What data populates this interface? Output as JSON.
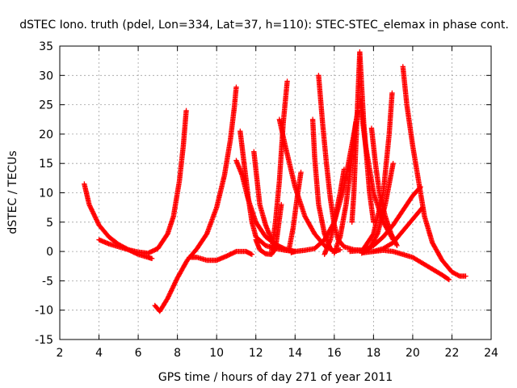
{
  "chart_data": {
    "type": "scatter",
    "title": "dSTEC Iono. truth (pdel, Lon=334, Lat=37, h=110): STEC-STEC_elemax in phase cont.",
    "xlabel": "GPS time / hours of day 271 of year 2011",
    "ylabel": "dSTEC  / TECUs",
    "xlim": [
      2,
      24
    ],
    "ylim": [
      -15,
      35
    ],
    "xticks": [
      2,
      4,
      6,
      8,
      10,
      12,
      14,
      16,
      18,
      20,
      22,
      24
    ],
    "yticks": [
      -15,
      -10,
      -5,
      0,
      5,
      10,
      15,
      20,
      25,
      30,
      35
    ],
    "grid": true,
    "marker": "plus",
    "color": "#ff0000",
    "series": [
      {
        "x": [
          3.25,
          3.5,
          4.0,
          4.5,
          5.0,
          5.5,
          6.0,
          6.5,
          6.7
        ],
        "y": [
          11.5,
          8.0,
          4.5,
          2.5,
          1.2,
          0.3,
          -0.5,
          -1.0,
          -1.2
        ]
      },
      {
        "x": [
          4.0,
          4.5,
          5.0,
          5.5,
          6.0,
          6.5,
          7.0,
          7.5,
          7.8,
          8.1,
          8.3,
          8.45
        ],
        "y": [
          2.0,
          1.3,
          0.8,
          0.3,
          -0.1,
          -0.3,
          0.5,
          3.0,
          6.0,
          12.0,
          18.0,
          24.0
        ]
      },
      {
        "x": [
          6.85,
          7.1,
          7.5,
          8.0,
          8.5,
          9.0,
          9.5,
          10.0,
          10.4,
          10.7,
          10.9,
          11.0
        ],
        "y": [
          -9.2,
          -10.2,
          -8.0,
          -4.5,
          -1.5,
          0.5,
          3.0,
          7.5,
          13.0,
          19.0,
          24.5,
          28.0
        ]
      },
      {
        "x": [
          8.6,
          9.0,
          9.5,
          10.0,
          10.5,
          11.0,
          11.5,
          11.8
        ],
        "y": [
          -1.0,
          -1.0,
          -1.5,
          -1.5,
          -0.8,
          0.0,
          0.0,
          -0.5
        ]
      },
      {
        "x": [
          11.0,
          11.3,
          11.6,
          12.0,
          12.5,
          13.0,
          13.5,
          14.0
        ],
        "y": [
          15.5,
          13.0,
          9.0,
          5.0,
          2.5,
          1.2,
          0.4,
          0.0
        ]
      },
      {
        "x": [
          11.2,
          11.4,
          11.6,
          11.8,
          12.0,
          12.5,
          13.0,
          13.5,
          14.0
        ],
        "y": [
          20.5,
          15.0,
          9.5,
          5.0,
          2.5,
          1.0,
          0.5,
          0.2,
          0.0
        ]
      },
      {
        "x": [
          11.9,
          12.0,
          12.2,
          12.5,
          12.8,
          13.0
        ],
        "y": [
          17.0,
          14.0,
          8.0,
          4.5,
          2.0,
          1.0
        ]
      },
      {
        "x": [
          12.0,
          12.2,
          12.5,
          12.8,
          13.0,
          13.1,
          13.3
        ],
        "y": [
          2.0,
          0.3,
          -0.4,
          -0.5,
          0.5,
          3.0,
          8.0
        ]
      },
      {
        "x": [
          12.8,
          13.0,
          13.2,
          13.4,
          13.6
        ],
        "y": [
          0.0,
          5.0,
          12.0,
          22.0,
          29.0
        ]
      },
      {
        "x": [
          13.2,
          13.5,
          14.0,
          14.5,
          15.0,
          15.5,
          16.0
        ],
        "y": [
          22.5,
          18.0,
          11.0,
          6.0,
          3.0,
          1.0,
          0.0
        ]
      },
      {
        "x": [
          13.7,
          13.9,
          14.1,
          14.3
        ],
        "y": [
          0.5,
          4.0,
          9.0,
          13.5
        ]
      },
      {
        "x": [
          13.8,
          14.0,
          14.5,
          15.0,
          15.5,
          16.0,
          16.5,
          17.0,
          17.2
        ],
        "y": [
          -0.2,
          0.0,
          0.2,
          0.5,
          2.0,
          5.0,
          11.0,
          20.0,
          24.0
        ]
      },
      {
        "x": [
          14.9,
          15.0,
          15.2,
          15.5,
          15.8,
          16.0,
          16.3
        ],
        "y": [
          22.5,
          16.0,
          8.0,
          3.0,
          0.5,
          0.0,
          0.3
        ]
      },
      {
        "x": [
          15.2,
          15.4,
          15.6,
          15.8,
          16.0,
          16.2,
          16.5,
          17.0,
          17.5
        ],
        "y": [
          30.0,
          22.0,
          15.0,
          9.0,
          4.5,
          2.0,
          0.8,
          0.3,
          0.2
        ]
      },
      {
        "x": [
          15.5,
          15.8,
          16.0,
          16.3,
          16.5
        ],
        "y": [
          -0.5,
          2.0,
          5.0,
          10.0,
          14.0
        ]
      },
      {
        "x": [
          16.0,
          16.3,
          16.6,
          16.9,
          17.1
        ],
        "y": [
          -0.3,
          2.5,
          8.0,
          16.0,
          22.0
        ]
      },
      {
        "x": [
          16.9,
          17.0,
          17.1,
          17.2,
          17.3,
          17.5,
          17.8,
          18.0
        ],
        "y": [
          5.0,
          10.0,
          18.0,
          26.0,
          34.0,
          22.0,
          10.0,
          5.0
        ]
      },
      {
        "x": [
          17.3,
          17.6,
          18.0,
          18.5,
          19.0
        ],
        "y": [
          26.0,
          18.0,
          10.0,
          5.0,
          2.0
        ]
      },
      {
        "x": [
          17.4,
          17.8,
          18.2,
          18.6,
          19.0
        ],
        "y": [
          -0.3,
          0.5,
          3.0,
          8.0,
          15.0
        ]
      },
      {
        "x": [
          16.8,
          17.5,
          18.0,
          18.5,
          19.0,
          19.5,
          20.0,
          20.4
        ],
        "y": [
          0.0,
          0.2,
          1.0,
          2.5,
          4.5,
          7.0,
          9.5,
          11.0
        ]
      },
      {
        "x": [
          17.5,
          18.0,
          18.5,
          18.8,
          18.95
        ],
        "y": [
          0.5,
          3.0,
          10.0,
          20.0,
          27.0
        ]
      },
      {
        "x": [
          17.9,
          18.1,
          18.3,
          18.6,
          18.9,
          19.2
        ],
        "y": [
          21.0,
          15.0,
          10.0,
          6.0,
          3.0,
          1.0
        ]
      },
      {
        "x": [
          17.5,
          18.0,
          18.5,
          19.0,
          19.5,
          20.0,
          20.5
        ],
        "y": [
          -0.2,
          0.0,
          0.5,
          1.5,
          3.5,
          5.5,
          7.5
        ]
      },
      {
        "x": [
          18.0,
          18.5,
          19.0,
          19.5,
          20.0,
          20.5,
          21.0,
          21.5,
          21.85
        ],
        "y": [
          0.0,
          0.2,
          0.0,
          -0.5,
          -1.0,
          -2.0,
          -3.0,
          -4.0,
          -4.8
        ]
      },
      {
        "x": [
          19.5,
          19.7,
          20.0,
          20.3,
          20.6,
          21.0,
          21.5,
          22.0,
          22.4,
          22.7
        ],
        "y": [
          31.5,
          25.0,
          18.0,
          12.0,
          6.0,
          1.5,
          -1.5,
          -3.5,
          -4.2,
          -4.2
        ]
      }
    ]
  }
}
